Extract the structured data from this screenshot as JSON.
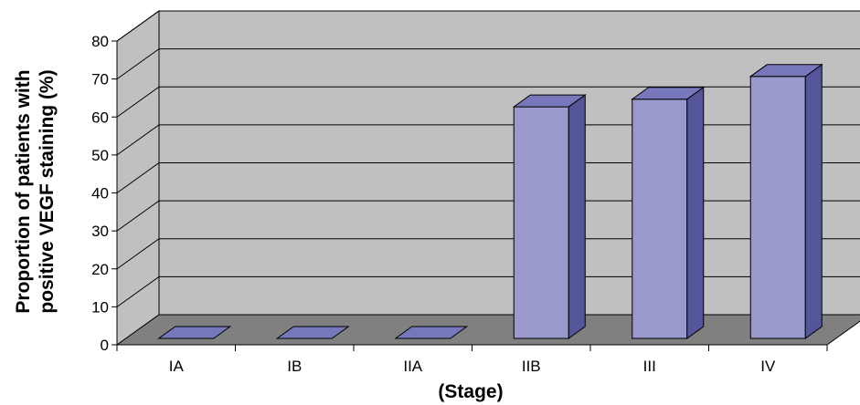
{
  "chart_data": {
    "type": "bar",
    "style": "3d-column",
    "categories": [
      "IA",
      "IB",
      "IIA",
      "IIB",
      "III",
      "IV"
    ],
    "values": [
      0,
      0,
      0,
      61,
      63,
      69
    ],
    "ylim": [
      0,
      80
    ],
    "yticks": [
      "0",
      "10",
      "20",
      "30",
      "40",
      "50",
      "60",
      "70",
      "80"
    ],
    "xlabel": "(Stage)",
    "ylabel_lines": [
      "Proportion of patients with",
      "positive VEGF staining (%)"
    ],
    "grid": true,
    "legend": "none",
    "colors": {
      "bar_front": "#9999cc",
      "bar_top": "#7777bb",
      "bar_side": "#55559a",
      "wall": "#c0c0c0",
      "floor": "#808080"
    }
  }
}
